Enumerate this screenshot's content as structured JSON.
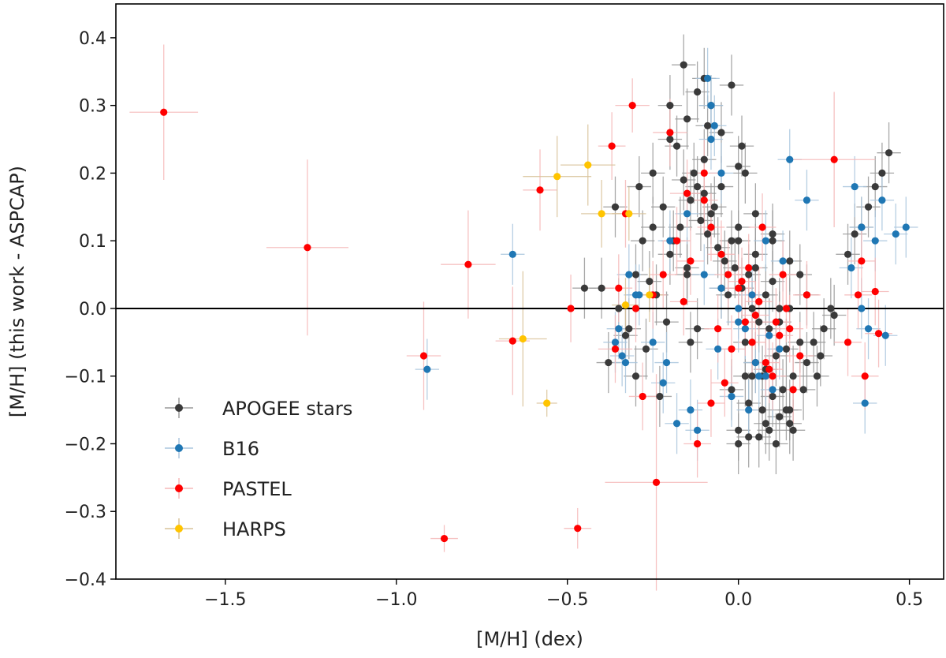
{
  "chart_data": {
    "type": "scatter",
    "title": "",
    "xlabel": "[M/H] (dex)",
    "ylabel": "[M/H] (this work - ASPCAP)",
    "xlim": [
      -1.82,
      0.6
    ],
    "ylim": [
      -0.4,
      0.45
    ],
    "xticks": [
      {
        "value": -1.5,
        "label": "−1.5"
      },
      {
        "value": -1.0,
        "label": "−1.0"
      },
      {
        "value": -0.5,
        "label": "−0.5"
      },
      {
        "value": 0.0,
        "label": "0.0"
      },
      {
        "value": 0.5,
        "label": "0.5"
      }
    ],
    "yticks": [
      {
        "value": -0.4,
        "label": "−0.4"
      },
      {
        "value": -0.3,
        "label": "−0.3"
      },
      {
        "value": -0.2,
        "label": "−0.2"
      },
      {
        "value": -0.1,
        "label": "−0.1"
      },
      {
        "value": 0.0,
        "label": "0.0"
      },
      {
        "value": 0.1,
        "label": "0.1"
      },
      {
        "value": 0.2,
        "label": "0.2"
      },
      {
        "value": 0.3,
        "label": "0.3"
      },
      {
        "value": 0.4,
        "label": "0.4"
      }
    ],
    "grid": false,
    "reference_line_y": 0.0,
    "legend_position": "lower-left",
    "series": [
      {
        "name": "APOGEE stars",
        "color": "#3a3a3a",
        "errcolor": "#9a9a9a",
        "x": [
          -0.2,
          -0.15,
          -0.1,
          -0.05,
          0.0,
          0.05,
          0.1,
          0.15,
          -0.25,
          -0.18,
          -0.12,
          -0.08,
          -0.02,
          0.03,
          0.08,
          0.12,
          0.18,
          -0.22,
          -0.16,
          -0.11,
          -0.06,
          -0.01,
          0.04,
          0.09,
          0.14,
          0.2,
          -0.28,
          -0.14,
          -0.09,
          -0.04,
          0.01,
          0.06,
          0.11,
          0.16,
          -0.3,
          -0.2,
          -0.17,
          -0.13,
          -0.07,
          -0.03,
          0.02,
          0.07,
          0.13,
          -0.35,
          -0.26,
          -0.19,
          -0.1,
          0.0,
          0.05,
          0.1,
          0.15,
          0.22,
          -0.32,
          -0.24,
          -0.15,
          -0.05,
          0.04,
          0.12,
          0.19,
          0.25,
          -0.4,
          -0.33,
          -0.27,
          -0.21,
          0.08,
          0.16,
          0.23,
          0.28,
          -0.45,
          -0.38,
          -0.3,
          -0.23,
          -0.12,
          0.03,
          0.14,
          0.24,
          -0.36,
          -0.29,
          -0.08,
          0.02,
          0.1,
          0.18,
          0.27,
          -0.2,
          -0.1,
          -0.05,
          0.0,
          0.05,
          0.1,
          0.15,
          0.2,
          -0.16,
          -0.12,
          -0.09,
          -0.02,
          0.01,
          -0.25,
          -0.14,
          0.0,
          0.06,
          0.11,
          0.44,
          0.42,
          0.4,
          0.38,
          0.36,
          0.32,
          0.34,
          -0.02,
          0.03,
          -0.15,
          0.08,
          0.12,
          0.02,
          0.05,
          0.0,
          0.07,
          0.09,
          0.15
        ],
        "y": [
          0.25,
          0.28,
          0.22,
          0.18,
          0.12,
          0.08,
          0.04,
          0.0,
          0.2,
          0.24,
          0.18,
          0.14,
          0.1,
          0.05,
          0.02,
          -0.02,
          -0.05,
          0.15,
          0.19,
          0.13,
          0.09,
          0.06,
          0.0,
          -0.03,
          -0.06,
          -0.08,
          0.1,
          0.16,
          0.11,
          0.07,
          0.03,
          -0.02,
          -0.07,
          -0.1,
          0.05,
          0.08,
          0.12,
          0.2,
          0.15,
          0.02,
          -0.05,
          -0.1,
          -0.12,
          0.0,
          0.04,
          0.1,
          0.17,
          0.1,
          -0.08,
          -0.13,
          -0.15,
          -0.05,
          -0.03,
          0.02,
          0.06,
          0.03,
          -0.1,
          -0.16,
          -0.12,
          -0.03,
          0.03,
          -0.04,
          -0.06,
          -0.02,
          -0.17,
          -0.18,
          -0.1,
          -0.01,
          0.03,
          -0.08,
          -0.1,
          -0.13,
          -0.03,
          -0.19,
          -0.15,
          -0.07,
          0.15,
          0.18,
          0.3,
          0.2,
          0.1,
          0.05,
          0.0,
          0.3,
          0.34,
          0.26,
          0.21,
          0.14,
          0.11,
          0.07,
          0.02,
          0.36,
          0.32,
          0.27,
          0.33,
          0.24,
          0.12,
          -0.05,
          -0.18,
          -0.19,
          -0.2,
          0.23,
          0.2,
          0.18,
          0.15,
          0.12,
          0.08,
          0.11,
          -0.12,
          -0.14,
          0.05,
          -0.09,
          0.0,
          -0.1,
          0.06,
          -0.2,
          -0.15,
          -0.18,
          -0.17
        ]
      },
      {
        "name": "B16",
        "color": "#1f77b4",
        "errcolor": "#aac6de",
        "x": [
          -0.09,
          -0.08,
          -0.07,
          -0.05,
          0.15,
          0.2,
          0.0,
          0.02,
          0.05,
          0.08,
          0.1,
          -0.02,
          0.03,
          0.06,
          0.12,
          0.0,
          -0.1,
          -0.05,
          0.04,
          0.09,
          -0.15,
          -0.2,
          -0.35,
          -0.36,
          -0.34,
          -0.33,
          -0.3,
          -0.32,
          0.34,
          0.36,
          0.4,
          0.42,
          0.46,
          0.49,
          0.33,
          0.38,
          0.36,
          0.43,
          0.37,
          -0.66,
          -0.91,
          -0.08,
          0.13,
          0.08,
          -0.22,
          -0.21,
          -0.25,
          -0.29,
          -0.12,
          -0.14,
          -0.18,
          -0.06
        ],
        "y": [
          0.34,
          0.3,
          0.27,
          0.2,
          0.22,
          0.16,
          0.0,
          -0.03,
          -0.08,
          -0.1,
          -0.12,
          -0.13,
          -0.15,
          -0.1,
          -0.06,
          -0.02,
          0.05,
          0.03,
          0.02,
          -0.04,
          0.14,
          0.1,
          -0.03,
          -0.05,
          -0.07,
          -0.08,
          0.02,
          0.05,
          0.18,
          0.12,
          0.1,
          0.16,
          0.11,
          0.12,
          0.06,
          -0.03,
          0.0,
          -0.04,
          -0.14,
          0.08,
          -0.09,
          0.25,
          0.07,
          0.1,
          -0.11,
          -0.08,
          -0.05,
          0.02,
          -0.18,
          -0.15,
          -0.17,
          -0.06
        ]
      },
      {
        "name": "PASTEL",
        "color": "#ff0000",
        "errcolor": "#f5b8b8",
        "x": [
          -1.68,
          -1.26,
          -0.92,
          -0.86,
          -0.79,
          -0.66,
          -0.58,
          -0.49,
          -0.47,
          -0.37,
          -0.36,
          -0.35,
          -0.33,
          -0.31,
          -0.28,
          -0.25,
          -0.24,
          -0.2,
          -0.18,
          -0.15,
          -0.12,
          -0.1,
          -0.08,
          -0.05,
          -0.03,
          0.0,
          0.02,
          0.04,
          0.06,
          0.08,
          0.1,
          0.12,
          0.14,
          0.16,
          0.18,
          0.2,
          -0.06,
          -0.02,
          0.01,
          0.05,
          0.09,
          0.13,
          -0.1,
          -0.14,
          0.28,
          0.32,
          0.36,
          0.4,
          0.41,
          -0.08,
          0.07,
          0.11,
          -0.04,
          0.03,
          0.15,
          -0.16,
          -0.22,
          0.35,
          0.37,
          -0.3
        ],
        "y": [
          0.29,
          0.09,
          -0.07,
          -0.34,
          0.065,
          -0.048,
          0.175,
          0.0,
          -0.325,
          0.24,
          -0.06,
          0.03,
          0.14,
          0.3,
          -0.13,
          0.02,
          -0.257,
          0.26,
          0.1,
          0.17,
          -0.2,
          0.2,
          0.12,
          0.08,
          0.05,
          0.03,
          -0.02,
          -0.05,
          0.01,
          -0.08,
          -0.1,
          -0.04,
          0.0,
          -0.12,
          -0.07,
          0.02,
          -0.03,
          -0.06,
          0.04,
          -0.01,
          -0.09,
          0.05,
          0.16,
          0.07,
          0.22,
          -0.05,
          0.07,
          0.025,
          -0.037,
          -0.14,
          0.12,
          -0.02,
          -0.11,
          0.06,
          -0.03,
          0.01,
          0.05,
          0.02,
          -0.1,
          0.0
        ],
        "xerr": [
          0.1,
          0.12,
          0.05,
          0.04,
          0.08,
          0.05,
          0.05,
          0.04,
          0.04,
          0.04,
          0.05,
          0.04,
          0.04,
          0.05,
          0.04,
          0.04,
          0.15,
          0.05,
          0.04,
          0.05,
          0.04,
          0.05,
          0.04,
          0.04,
          0.04,
          0.04,
          0.04,
          0.04,
          0.04,
          0.04,
          0.04,
          0.04,
          0.04,
          0.04,
          0.04,
          0.04,
          0.04,
          0.04,
          0.04,
          0.04,
          0.04,
          0.04,
          0.04,
          0.04,
          0.12,
          0.04,
          0.04,
          0.04,
          0.04,
          0.04,
          0.04,
          0.04,
          0.04,
          0.04,
          0.04,
          0.04,
          0.04,
          0.04,
          0.04,
          0.04
        ],
        "yerr": [
          0.1,
          0.13,
          0.08,
          0.02,
          0.08,
          0.08,
          0.06,
          0.05,
          0.03,
          0.05,
          0.05,
          0.05,
          0.05,
          0.04,
          0.05,
          0.05,
          0.16,
          0.05,
          0.05,
          0.05,
          0.05,
          0.05,
          0.05,
          0.05,
          0.05,
          0.05,
          0.05,
          0.05,
          0.05,
          0.05,
          0.05,
          0.05,
          0.05,
          0.05,
          0.05,
          0.05,
          0.05,
          0.05,
          0.05,
          0.05,
          0.05,
          0.05,
          0.05,
          0.05,
          0.1,
          0.05,
          0.05,
          0.05,
          0.05,
          0.05,
          0.05,
          0.05,
          0.05,
          0.05,
          0.05,
          0.05,
          0.05,
          0.05,
          0.05,
          0.05
        ]
      },
      {
        "name": "HARPS",
        "color": "#ffc400",
        "errcolor": "#d9c39a",
        "x": [
          -0.53,
          -0.44,
          -0.4,
          -0.32,
          -0.33,
          -0.26,
          -0.63,
          -0.56
        ],
        "y": [
          0.195,
          0.212,
          0.14,
          0.14,
          0.005,
          0.02,
          -0.045,
          -0.14
        ],
        "xerr": [
          0.1,
          0.08,
          0.06,
          0.05,
          0.04,
          0.04,
          0.07,
          0.03
        ],
        "yerr": [
          0.06,
          0.06,
          0.05,
          0.04,
          0.04,
          0.04,
          0.1,
          0.02
        ]
      }
    ]
  }
}
